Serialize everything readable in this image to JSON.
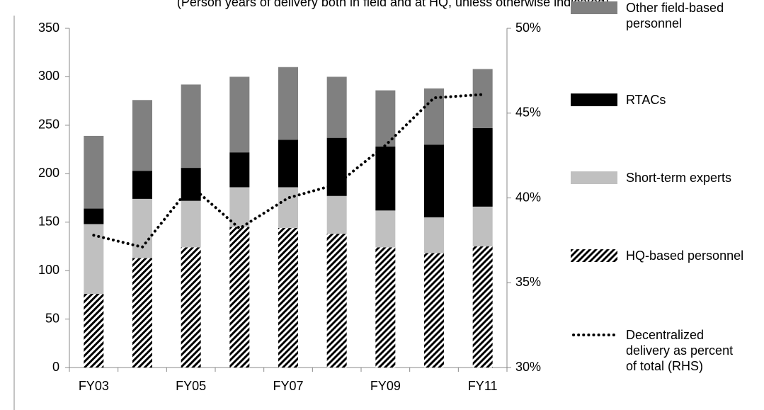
{
  "chart_data": {
    "type": "bar",
    "subtitle": "(Person years of delivery both in field and at HQ, unless otherwise indicated)",
    "categories": [
      "FY03",
      null,
      "FY05",
      null,
      "FY07",
      null,
      "FY09",
      null,
      "FY11"
    ],
    "series": [
      {
        "name": "HQ-based personnel",
        "color": "#000000",
        "pattern": "hatch",
        "values": [
          76,
          113,
          124,
          145,
          144,
          138,
          124,
          118,
          125
        ]
      },
      {
        "name": "Short-term experts",
        "color": "#c0c0c0",
        "values": [
          72,
          61,
          48,
          41,
          42,
          39,
          38,
          37,
          41
        ]
      },
      {
        "name": "RTACs",
        "color": "#000000",
        "values": [
          16,
          29,
          34,
          36,
          49,
          60,
          66,
          75,
          81
        ]
      },
      {
        "name": "Other field-based personnel",
        "color": "#808080",
        "values": [
          75,
          73,
          86,
          78,
          75,
          63,
          58,
          58,
          61
        ]
      },
      {
        "name": "Decentralized delivery as percent of total (RHS)",
        "type": "line",
        "axis": "y2",
        "color": "#000000",
        "values": [
          37.8,
          37.1,
          40.7,
          38.2,
          40.0,
          40.8,
          43.1,
          45.9,
          46.1
        ]
      }
    ],
    "ylim": [
      0,
      350
    ],
    "yticks": [
      0,
      50,
      100,
      150,
      200,
      250,
      300,
      350
    ],
    "y2lim": [
      30,
      50
    ],
    "y2ticks": [
      {
        "value": 30,
        "label": "30%"
      },
      {
        "value": 35,
        "label": "35%"
      },
      {
        "value": 40,
        "label": "40%"
      },
      {
        "value": 45,
        "label": "45%"
      },
      {
        "value": 50,
        "label": "50%"
      }
    ],
    "grid": false
  }
}
